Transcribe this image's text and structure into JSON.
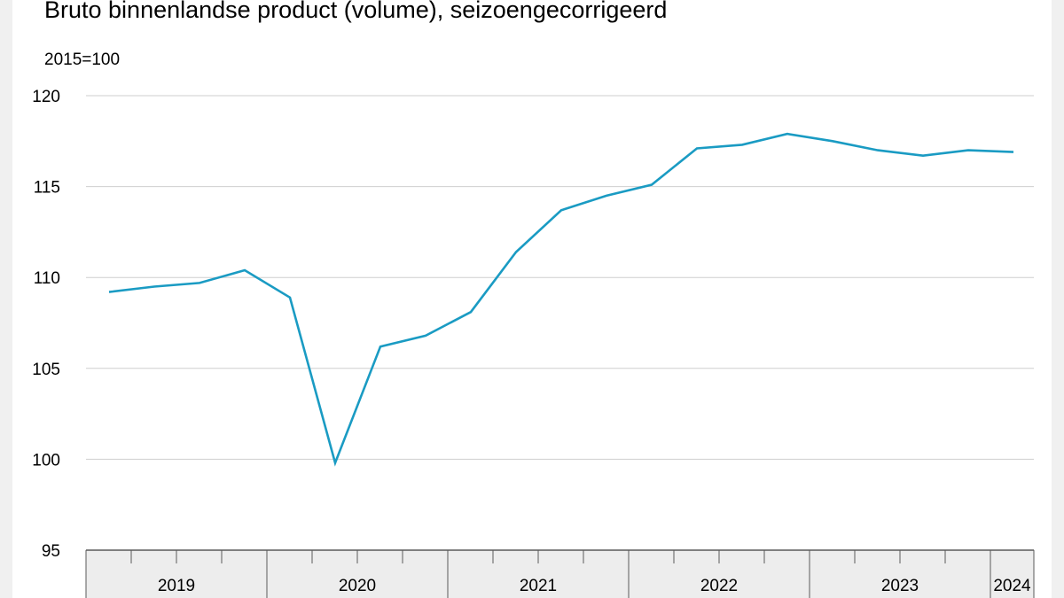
{
  "chart_data": {
    "type": "line",
    "title": "Bruto binnenlandse product (volume), seizoengecorrigeerd",
    "unit_label": "2015=100",
    "xlabel": "",
    "ylabel": "",
    "ylim": [
      95,
      120
    ],
    "yticks": [
      "120",
      "115",
      "110",
      "105",
      "100",
      "95"
    ],
    "ytick_values": [
      120,
      115,
      110,
      105,
      100,
      95
    ],
    "grid": true,
    "legend": "none",
    "line_color": "#1a9bc3",
    "x": [
      "2019 Q1",
      "2019 Q2",
      "2019 Q3",
      "2019 Q4",
      "2020 Q1",
      "2020 Q2",
      "2020 Q3",
      "2020 Q4",
      "2021 Q1",
      "2021 Q2",
      "2021 Q3",
      "2021 Q4",
      "2022 Q1",
      "2022 Q2",
      "2022 Q3",
      "2022 Q4",
      "2023 Q1",
      "2023 Q2",
      "2023 Q3",
      "2023 Q4",
      "2024 Q1"
    ],
    "series": [
      {
        "values": [
          109.2,
          109.5,
          109.7,
          110.4,
          108.9,
          99.8,
          106.2,
          106.8,
          108.1,
          111.4,
          113.7,
          114.5,
          115.1,
          117.1,
          117.3,
          117.9,
          117.5,
          117.0,
          116.7,
          117.0,
          116.9
        ]
      }
    ],
    "year_labels": [
      "2019",
      "2020",
      "2021",
      "2022",
      "2023",
      "2024"
    ],
    "year_quarter_counts": [
      4,
      4,
      4,
      4,
      4,
      1
    ]
  }
}
